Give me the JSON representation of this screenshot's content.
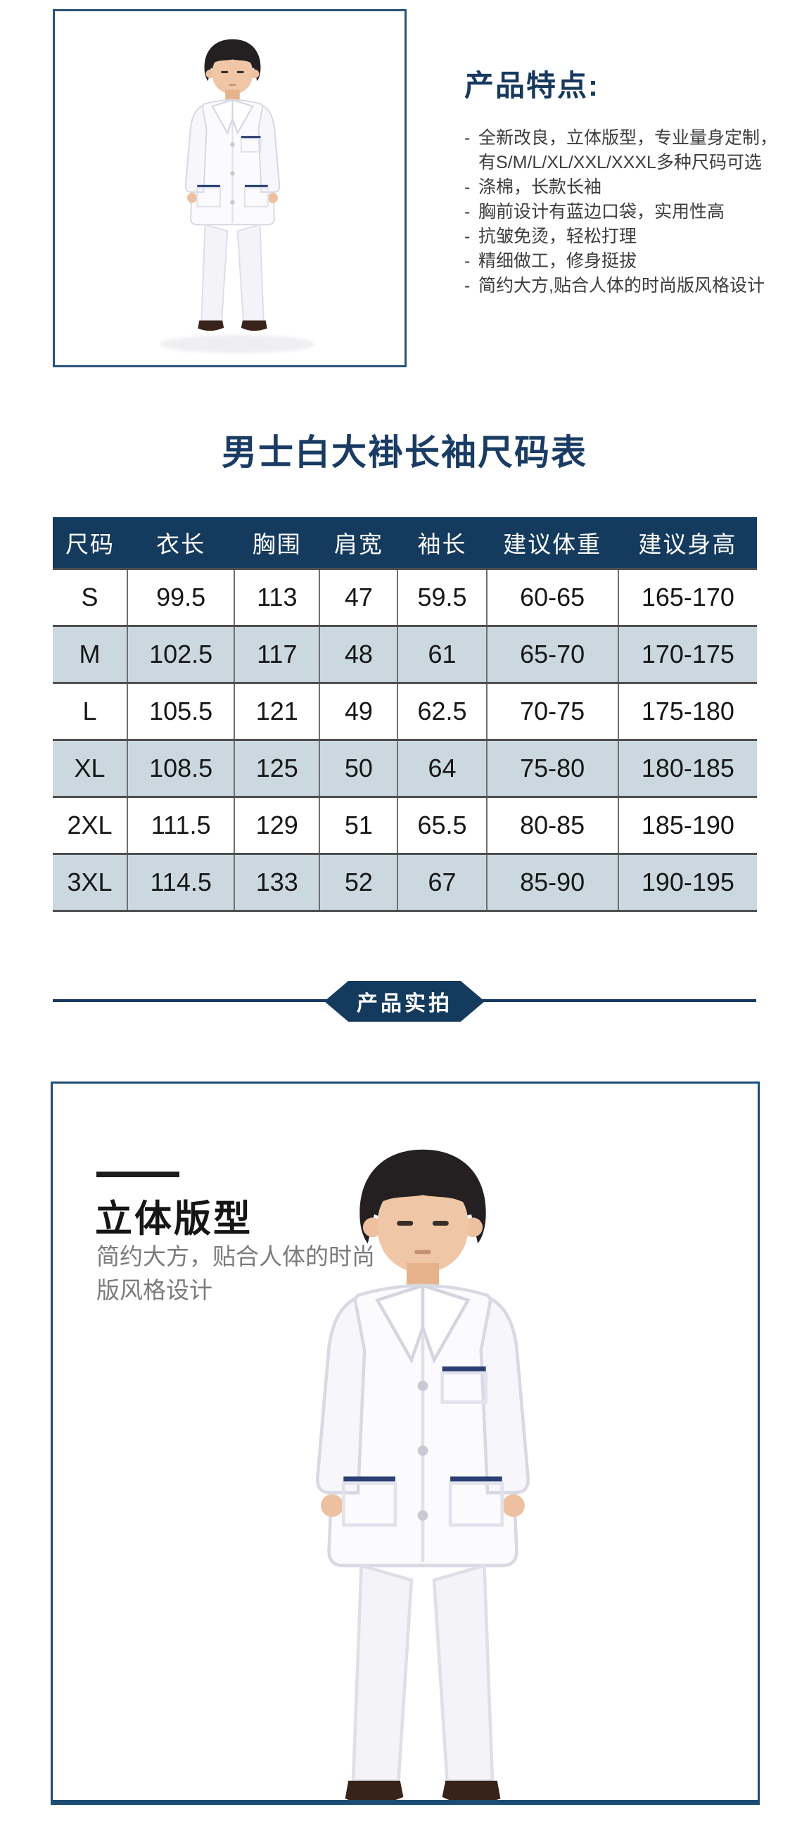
{
  "colors": {
    "navy": "#143a5e",
    "box_border": "#27547b",
    "row_alt": "#ccd8e0",
    "title_text": "#1a3c64",
    "feature_text": "#3d3d3d",
    "muted_gray": "#7b7b7b"
  },
  "images": {
    "top_photo": "model-in-white-lab-coat",
    "showcase_photo": "model-in-white-lab-coat"
  },
  "top": {
    "features": {
      "heading": "产品特点:",
      "items": [
        {
          "prefix": "-",
          "text": "全新改良，立体版型，专业量身定制，"
        },
        {
          "prefix": "",
          "text": "有S/M/L/XL/XXL/XXXL多种尺码可选"
        },
        {
          "prefix": "-",
          "text": "涤棉，长款长袖"
        },
        {
          "prefix": "-",
          "text": "胸前设计有蓝边口袋，实用性高"
        },
        {
          "prefix": "-",
          "text": "抗皱免烫，轻松打理"
        },
        {
          "prefix": "-",
          "text": "精细做工，修身挺拔"
        },
        {
          "prefix": "-",
          "text": "简约大方,贴合人体的时尚版风格设计"
        }
      ]
    }
  },
  "size_section": {
    "title": "男士白大褂长袖尺码表",
    "table": {
      "headers": [
        "尺码",
        "衣长",
        "胸围",
        "肩宽",
        "袖长",
        "建议体重",
        "建议身高"
      ],
      "rows": [
        [
          "S",
          "99.5",
          "113",
          "47",
          "59.5",
          "60-65",
          "165-170"
        ],
        [
          "M",
          "102.5",
          "117",
          "48",
          "61",
          "65-70",
          "170-175"
        ],
        [
          "L",
          "105.5",
          "121",
          "49",
          "62.5",
          "70-75",
          "175-180"
        ],
        [
          "XL",
          "108.5",
          "125",
          "50",
          "64",
          "75-80",
          "180-185"
        ],
        [
          "2XL",
          "111.5",
          "129",
          "51",
          "65.5",
          "80-85",
          "185-190"
        ],
        [
          "3XL",
          "114.5",
          "133",
          "52",
          "67",
          "85-90",
          "190-195"
        ]
      ]
    }
  },
  "divider": {
    "badge_label": "产品实拍"
  },
  "showcase": {
    "heading": "立体版型",
    "description_line1": "简约大方，贴合人体的时尚",
    "description_line2": "版风格设计"
  }
}
